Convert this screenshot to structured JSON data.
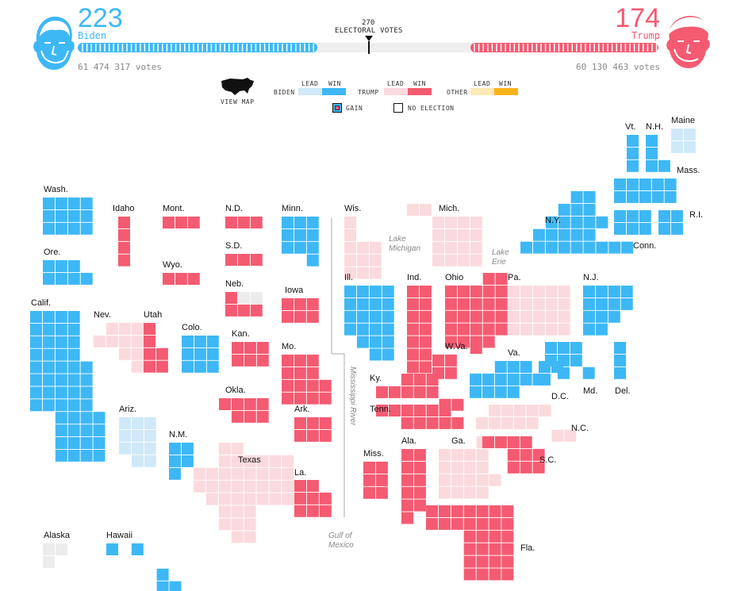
{
  "colors": {
    "biden_win": "#3db8f5",
    "biden_lead": "#cfe9f8",
    "trump_win": "#f45b72",
    "trump_lead": "#fbdade",
    "other_lead": "#fde9b6",
    "other_win": "#f8b31b",
    "no_election": "#ececec",
    "tally_gap": "#eeeeee"
  },
  "header": {
    "biden": {
      "score": "223",
      "name": "Biden",
      "votes": "61 474 317 votes"
    },
    "trump": {
      "score": "174",
      "name": "Trump",
      "votes": "60 130 463 votes"
    },
    "threshold": {
      "number": "270",
      "label": "ELECTORAL VOTES"
    }
  },
  "legend": {
    "view_map": "VIEW MAP",
    "lead": "LEAD",
    "win": "WIN",
    "biden": "BIDEN",
    "trump": "TRUMP",
    "other": "OTHER",
    "gain": "GAIN",
    "no_election": "NO ELECTION"
  },
  "geo_labels": {
    "lake_michigan": [
      "Lake",
      "Michigan"
    ],
    "lake_erie": [
      "Lake",
      "Erie"
    ],
    "mississippi": "Mississippi River",
    "gulf": [
      "Gulf of",
      "Mexico"
    ]
  },
  "states": [
    {
      "name": "Wash.",
      "status": "biden_win",
      "rows": [
        "xxxx",
        "xxxx",
        "xxxx"
      ]
    },
    {
      "name": "Ore.",
      "status": "biden_win",
      "rows": [
        "xxx",
        "xxxx"
      ]
    },
    {
      "name": "Calif.",
      "status": "biden_win",
      "rows": [
        "xxxx",
        "xxxx",
        "xxxx",
        "xxxx",
        "xxxxx",
        "xxxxx",
        "xxxxx",
        "xxxxx",
        "..xxxx",
        "..xxxx",
        "..xxxx",
        "..xxxx"
      ]
    },
    {
      "name": "Idaho",
      "status": "trump_win",
      "rows": [
        "x",
        "x",
        "x",
        "x"
      ]
    },
    {
      "name": "Mont.",
      "status": "trump_win",
      "rows": [
        "xxx"
      ]
    },
    {
      "name": "Wyo.",
      "status": "trump_win",
      "rows": [
        "xxx"
      ]
    },
    {
      "name": "Nev.",
      "status": "trump_lead",
      "rows": [
        ".xxx",
        "xxxx",
        "..xx",
        "...x"
      ]
    },
    {
      "name": "Utah",
      "status": "trump_win",
      "rows": [
        "x",
        "x",
        "xx",
        "xx"
      ]
    },
    {
      "name": "Colo.",
      "status": "biden_win",
      "rows": [
        "xxx",
        "xxx",
        "xxx"
      ]
    },
    {
      "name": "Ariz.",
      "status": "biden_lead",
      "rows": [
        "xxx",
        "xxx",
        "xxx",
        ".xx"
      ]
    },
    {
      "name": "N.M.",
      "status": "biden_win",
      "rows": [
        "xx",
        "xx",
        "x"
      ]
    },
    {
      "name": "N.D.",
      "status": "trump_win",
      "rows": [
        "xxx"
      ]
    },
    {
      "name": "S.D.",
      "status": "trump_win",
      "rows": [
        "xxx"
      ]
    },
    {
      "name": "Neb.",
      "status": "trump_win",
      "rows": [
        "x",
        "xxx"
      ]
    },
    {
      "name": "Neb.-ne",
      "status": "no_election",
      "rows": [
        ".xx"
      ]
    },
    {
      "name": "Kan.",
      "status": "trump_win",
      "rows": [
        "xxx",
        "xxx"
      ]
    },
    {
      "name": "Okla.",
      "status": "trump_win",
      "rows": [
        "xxxx",
        ".xxx"
      ]
    },
    {
      "name": "Texas",
      "status": "trump_lead",
      "rows": [
        "..xx",
        "..xxxxxx",
        "xxxxxxxx",
        "xxxxxxxx",
        ".xxxxxxx",
        "..xxx",
        "..xxx",
        "...xx"
      ]
    },
    {
      "name": "Minn.",
      "status": "biden_win",
      "rows": [
        "xxx",
        "xxx",
        "xxx",
        "..x"
      ]
    },
    {
      "name": "Iowa",
      "status": "trump_win",
      "rows": [
        "xxx",
        "xxx"
      ]
    },
    {
      "name": "Mo.",
      "status": "trump_win",
      "rows": [
        "xxx",
        "xxx",
        "xxxx",
        "xxxx"
      ]
    },
    {
      "name": "Ark.",
      "status": "trump_win",
      "rows": [
        "xxx",
        "xxx"
      ]
    },
    {
      "name": "La.",
      "status": "trump_win",
      "rows": [
        "xx",
        "xxx",
        "xxx"
      ]
    },
    {
      "name": "Wis.",
      "status": "trump_lead",
      "rows": [
        "x",
        "x",
        "xxx",
        "xxx",
        "xxx"
      ]
    },
    {
      "name": "Mich.",
      "status": "trump_lead",
      "rows": [
        "xxxx",
        "xxxx",
        "xxxx",
        "xxxx"
      ]
    },
    {
      "name": "Mich.-up",
      "status": "trump_lead",
      "rows": [
        "xx"
      ]
    },
    {
      "name": "Ill.",
      "status": "biden_win",
      "rows": [
        "xxxx",
        "xxxx",
        "xxxx",
        "xxxx",
        ".xxx",
        "..xx"
      ]
    },
    {
      "name": "Ind.",
      "status": "trump_win",
      "rows": [
        "xx",
        "xx",
        "xx",
        "xx",
        "xx",
        "xx",
        "xx"
      ]
    },
    {
      "name": "Ohio",
      "status": "trump_win",
      "rows": [
        "...xx",
        "xxxxx",
        "xxxxx",
        "xxxxx",
        "xxxxx",
        "xxxx"
      ]
    },
    {
      "name": "Ky.",
      "status": "trump_win",
      "rows": [
        "..xxx",
        "xxxxx",
        ".....xx"
      ]
    },
    {
      "name": "Tenn.",
      "status": "trump_win",
      "rows": [
        "xxxxxx",
        "..xxxxx"
      ]
    },
    {
      "name": "Miss.",
      "status": "trump_win",
      "rows": [
        "xx",
        "xx",
        "xx"
      ]
    },
    {
      "name": "Ala.",
      "status": "trump_win",
      "rows": [
        "xx",
        "xx",
        "xx",
        "xx",
        "xx",
        "x"
      ]
    },
    {
      "name": "Ga.",
      "status": "trump_lead",
      "rows": [
        "...x",
        "xxxx",
        "xxxx",
        "xxxxx",
        "xxxx"
      ]
    },
    {
      "name": "Fla.",
      "status": "trump_win",
      "rows": [
        "xxxxxxx",
        "xxxxxxx",
        "...xxxx",
        "...xxxx",
        "...xxxx",
        "...xxxx"
      ]
    },
    {
      "name": "S.C.",
      "status": "trump_win",
      "rows": [
        "xxxx",
        "..xxx",
        "..xxx"
      ]
    },
    {
      "name": "N.C.",
      "status": "trump_lead",
      "rows": [
        ".xxxxx",
        "xxxxx",
        "......xx"
      ]
    },
    {
      "name": "W.Va.",
      "status": "trump_win",
      "rows": [
        "...x",
        "xx",
        "xx"
      ]
    },
    {
      "name": "Va.",
      "status": "biden_win",
      "rows": [
        "..xxx",
        "xxxxxx",
        "xxxx"
      ]
    },
    {
      "name": "Pa.",
      "status": "trump_lead",
      "rows": [
        "xxxxx",
        "xxxxx",
        "xxxxx",
        "xxxxx"
      ]
    },
    {
      "name": "N.J.",
      "status": "biden_win",
      "rows": [
        "xxxx",
        "xxxx",
        "xxx",
        "xx"
      ]
    },
    {
      "name": "N.Y.",
      "status": "biden_win",
      "rows": [
        "....xx",
        "...xxx",
        "..xxxxx",
        ".xxxxx",
        "xxxxxxxxx"
      ]
    },
    {
      "name": "Vt.",
      "status": "biden_win",
      "rows": [
        "x",
        "x",
        "x"
      ]
    },
    {
      "name": "N.H.",
      "status": "biden_win",
      "rows": [
        "x",
        "x",
        "xx"
      ]
    },
    {
      "name": "Maine",
      "status": "biden_lead",
      "rows": [
        "xx",
        "xx"
      ]
    },
    {
      "name": "Mass.",
      "status": "biden_win",
      "rows": [
        "xxxxx",
        "xxxxx"
      ]
    },
    {
      "name": "Conn.",
      "status": "biden_win",
      "rows": [
        "xxx",
        "xxx"
      ]
    },
    {
      "name": "R.I.",
      "status": "biden_win",
      "rows": [
        "xx",
        "xx"
      ]
    },
    {
      "name": "Md.",
      "status": "biden_win",
      "rows": [
        "xxx",
        "xxx",
        ".x.x"
      ]
    },
    {
      "name": "Del.",
      "status": "biden_win",
      "rows": [
        "x",
        "x",
        "x"
      ]
    },
    {
      "name": "D.C.",
      "status": "biden_win",
      "rows": [
        "xx",
        "x"
      ]
    },
    {
      "name": "Alaska",
      "status": "no_election",
      "rows": [
        "xx",
        "x"
      ]
    },
    {
      "name": "Hawaii",
      "status": "biden_win",
      "rows": [
        "x.x",
        "",
        "....x",
        "....xx"
      ]
    }
  ]
}
